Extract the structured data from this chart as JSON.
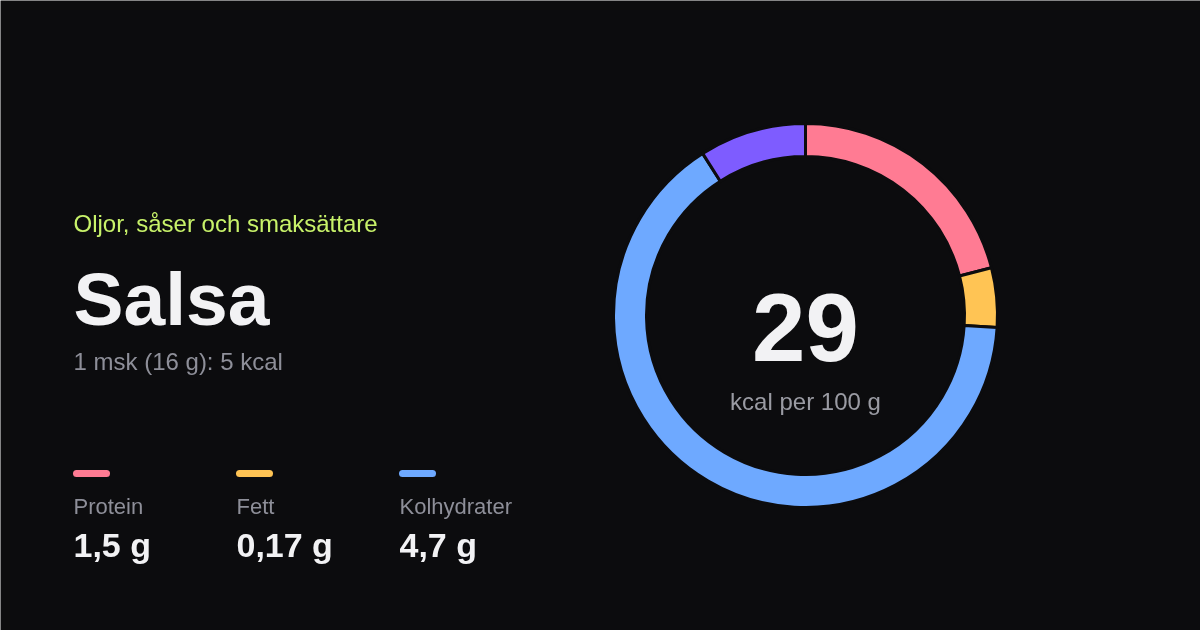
{
  "chart_data": {
    "type": "donut",
    "title": "Salsa",
    "subtitle": "Oljor, såser och smaksättare",
    "categories": [
      "Protein",
      "Fett",
      "Kolhydrater",
      null
    ],
    "values": [
      21,
      5,
      65,
      9
    ],
    "colors": [
      "#ff7b93",
      "#ffc454",
      "#6ea9ff",
      "#7e5cff"
    ],
    "legend": "left",
    "annotations": [
      "1 msk (16 g): 5 kcal",
      "29",
      "kcal per 100 g",
      "1,5 g",
      "0,17 g",
      "4,7 g"
    ]
  }
}
